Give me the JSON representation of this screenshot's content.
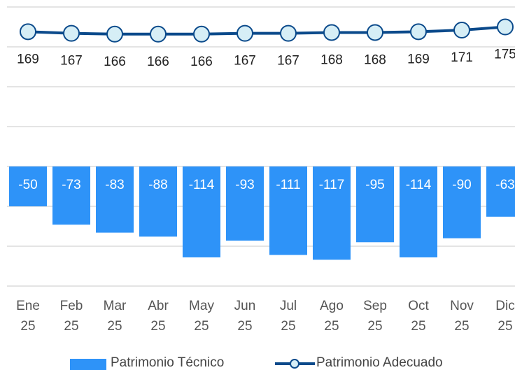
{
  "chart_data": {
    "type": "bar_line",
    "categories": [
      "Ene 25",
      "Feb 25",
      "Mar 25",
      "Abr 25",
      "May 25",
      "Jun 25",
      "Jul 25",
      "Ago 25",
      "Sep 25",
      "Oct 25",
      "Nov 25",
      "Dic 25"
    ],
    "series": [
      {
        "name": "Patrimonio Técnico",
        "type": "bar",
        "color": "#2e93f8",
        "values": [
          -50,
          -73,
          -83,
          -88,
          -114,
          -93,
          -111,
          -117,
          -95,
          -114,
          -90,
          -63
        ]
      },
      {
        "name": "Patrimonio Adecuado",
        "type": "line",
        "color": "#0b4a8b",
        "marker_fill": "#d6eef6",
        "values": [
          169,
          167,
          166,
          166,
          166,
          167,
          167,
          168,
          168,
          169,
          171,
          175
        ]
      }
    ],
    "ylim": [
      -150,
      200
    ],
    "yticks": [
      -150,
      -100,
      -50,
      0,
      50,
      100,
      150,
      200
    ],
    "grid": true
  }
}
